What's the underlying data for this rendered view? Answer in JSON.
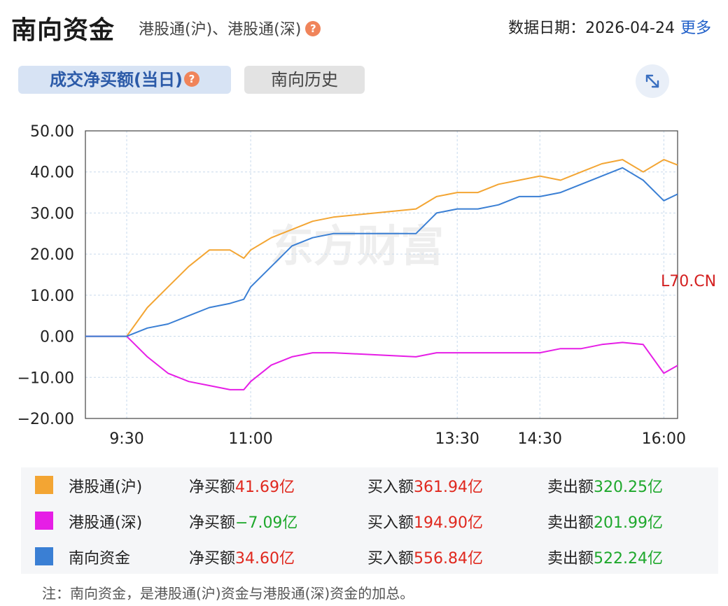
{
  "header": {
    "title": "南向资金",
    "subtitle": "港股通(沪)、港股通(深)",
    "help_glyph": "?",
    "date_label": "数据日期：2026-04-24",
    "more_label": "更多"
  },
  "tabs": [
    {
      "label": "成交净买额(当日)",
      "active": true
    },
    {
      "label": "南向历史",
      "active": false
    }
  ],
  "expand_icon": "expand-arrows-icon",
  "chart_data": {
    "type": "line",
    "ylim": [
      -20,
      50
    ],
    "y_ticks": [
      "50.00",
      "40.00",
      "30.00",
      "20.00",
      "10.00",
      "0.00",
      "−10.00",
      "−20.00"
    ],
    "x_ticks": [
      "9:30",
      "11:00",
      "13:30",
      "14:30",
      "16:00"
    ],
    "x": [
      "09:00",
      "09:20",
      "09:30",
      "09:45",
      "10:00",
      "10:15",
      "10:30",
      "10:45",
      "10:55",
      "11:00",
      "11:15",
      "11:30",
      "11:45",
      "12:00",
      "13:00",
      "13:15",
      "13:30",
      "13:45",
      "14:00",
      "14:15",
      "14:30",
      "14:45",
      "15:00",
      "15:15",
      "15:30",
      "15:45",
      "16:00",
      "16:10"
    ],
    "series": [
      {
        "name": "港股通(沪)",
        "color": "#f3a533",
        "values": [
          0,
          0,
          0,
          7,
          12,
          17,
          21,
          21,
          19,
          21,
          24,
          26,
          28,
          29,
          31,
          34,
          35,
          35,
          37,
          38,
          39,
          38,
          40,
          42,
          43,
          40,
          43,
          41.69
        ]
      },
      {
        "name": "港股通(深)",
        "color": "#e61ee6",
        "values": [
          0,
          0,
          0,
          -5,
          -9,
          -11,
          -12,
          -13,
          -13,
          -11,
          -7,
          -5,
          -4,
          -4,
          -5,
          -4,
          -4,
          -4,
          -4,
          -4,
          -4,
          -3,
          -3,
          -2,
          -1.5,
          -2,
          -9,
          -7.09
        ]
      },
      {
        "name": "南向资金",
        "color": "#3a7fd4",
        "values": [
          0,
          0,
          0,
          2,
          3,
          5,
          7,
          8,
          9,
          12,
          17,
          22,
          24,
          25,
          25,
          30,
          31,
          31,
          32,
          34,
          34,
          35,
          37,
          39,
          41,
          38,
          33,
          34.6
        ]
      }
    ]
  },
  "legend": [
    {
      "name": "港股通(沪)",
      "color": "#f3a533",
      "net_label": "净买额",
      "net_value": "41.69亿",
      "net_color": "red",
      "buy_label": "买入额",
      "buy_value": "361.94亿",
      "sell_label": "卖出额",
      "sell_value": "320.25亿"
    },
    {
      "name": "港股通(深)",
      "color": "#e61ee6",
      "net_label": "净买额",
      "net_value": "−7.09亿",
      "net_color": "green",
      "buy_label": "买入额",
      "buy_value": "194.90亿",
      "sell_label": "卖出额",
      "sell_value": "201.99亿"
    },
    {
      "name": "南向资金",
      "color": "#3a7fd4",
      "net_label": "净买额",
      "net_value": "34.60亿",
      "net_color": "red",
      "buy_label": "买入额",
      "buy_value": "556.84亿",
      "sell_label": "卖出额",
      "sell_value": "522.24亿"
    }
  ],
  "note": "注：南向资金，是港股通(沪)资金与港股通(深)资金的加总。",
  "watermark_text": "东方财富",
  "side_label": "L70.CN"
}
